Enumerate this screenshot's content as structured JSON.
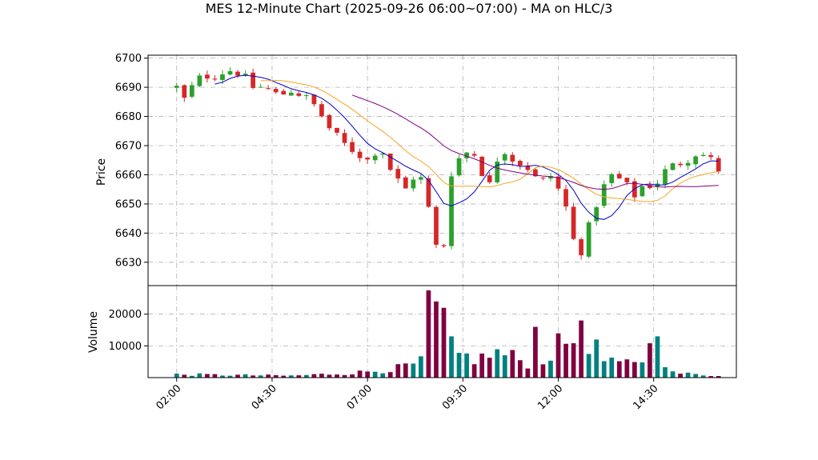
{
  "chart_data": {
    "type": "candlestick",
    "title": "MES 12-Minute Chart (2025-09-26 06:00~07:00) - MA on HLC/3",
    "price_panel": {
      "ylabel": "Price",
      "ylim": [
        6622,
        6701
      ],
      "yticks": [
        6630,
        6640,
        6650,
        6660,
        6670,
        6680,
        6690,
        6700
      ],
      "grid": true
    },
    "volume_panel": {
      "ylabel": "Volume",
      "ylim": [
        0,
        29000
      ],
      "yticks": [
        10000,
        20000
      ],
      "grid": true
    },
    "x_axis": {
      "tick_labels": [
        "02:00",
        "04:30",
        "07:00",
        "09:30",
        "12:00",
        "14:30"
      ],
      "tick_minutes": [
        120,
        270,
        420,
        570,
        720,
        870
      ],
      "xlim_minutes": [
        75,
        1000
      ],
      "label_rotation": 45
    },
    "colors": {
      "up": "#2ca02c",
      "down": "#d62728",
      "volume_up": "#008080",
      "volume_down": "#800040",
      "ma_fast": "#0000cc",
      "ma_mid": "#f5a623",
      "ma_slow": "#800080",
      "grid": "#b0b0b0"
    },
    "anchors": {
      "close_minutes": [
        120,
        130,
        140,
        160,
        180,
        200,
        220,
        240,
        260,
        280,
        300,
        320,
        340,
        360,
        380,
        400,
        420,
        440,
        460,
        480,
        500,
        520,
        530,
        540,
        550,
        560,
        570,
        590,
        610,
        630,
        650,
        670,
        690,
        710,
        730,
        740,
        750,
        760,
        770,
        780,
        800,
        820,
        840,
        860,
        870,
        880,
        900,
        920,
        940,
        960,
        975
      ],
      "close_values": [
        6690,
        6685,
        6689,
        6694,
        6694,
        6696,
        6695,
        6690,
        6690,
        6687,
        6689,
        6687,
        6683,
        6676,
        6671,
        6668,
        6665,
        6670,
        6660,
        6655,
        6662,
        6645,
        6633,
        6636,
        6660,
        6664,
        6668,
        6667,
        6655,
        6670,
        6665,
        6663,
        6657,
        6660,
        6650,
        6644,
        6628,
        6638,
        6643,
        6650,
        6660,
        6658,
        6653,
        6658,
        6654,
        6660,
        6663,
        6665,
        6668,
        6665,
        6661
      ]
    },
    "volume_anchors": {
      "minutes": [
        120,
        300,
        400,
        470,
        510,
        520,
        540,
        560,
        600,
        620,
        680,
        710,
        740,
        750,
        770,
        800,
        820,
        860,
        870,
        900,
        960,
        975
      ],
      "values": [
        1000,
        600,
        1500,
        3000,
        5000,
        20000,
        16000,
        7000,
        6000,
        8000,
        4500,
        8000,
        13000,
        9000,
        5000,
        4500,
        4000,
        7000,
        12000,
        1500,
        700,
        800
      ]
    },
    "spikes": [
      {
        "minute": 516,
        "value": 27500
      },
      {
        "minute": 528,
        "value": 24000
      },
      {
        "minute": 534,
        "value": 23000
      },
      {
        "minute": 544,
        "value": 22000
      },
      {
        "minute": 552,
        "value": 13000
      },
      {
        "minute": 684,
        "value": 16000
      },
      {
        "minute": 756,
        "value": 18000
      },
      {
        "minute": 762,
        "value": 15000
      },
      {
        "minute": 780,
        "value": 12000
      },
      {
        "minute": 876,
        "value": 13000
      }
    ],
    "moving_averages": [
      {
        "color_key": "ma_fast",
        "period": 6
      },
      {
        "color_key": "ma_mid",
        "period": 12
      },
      {
        "color_key": "ma_slow",
        "period": 24
      }
    ]
  }
}
